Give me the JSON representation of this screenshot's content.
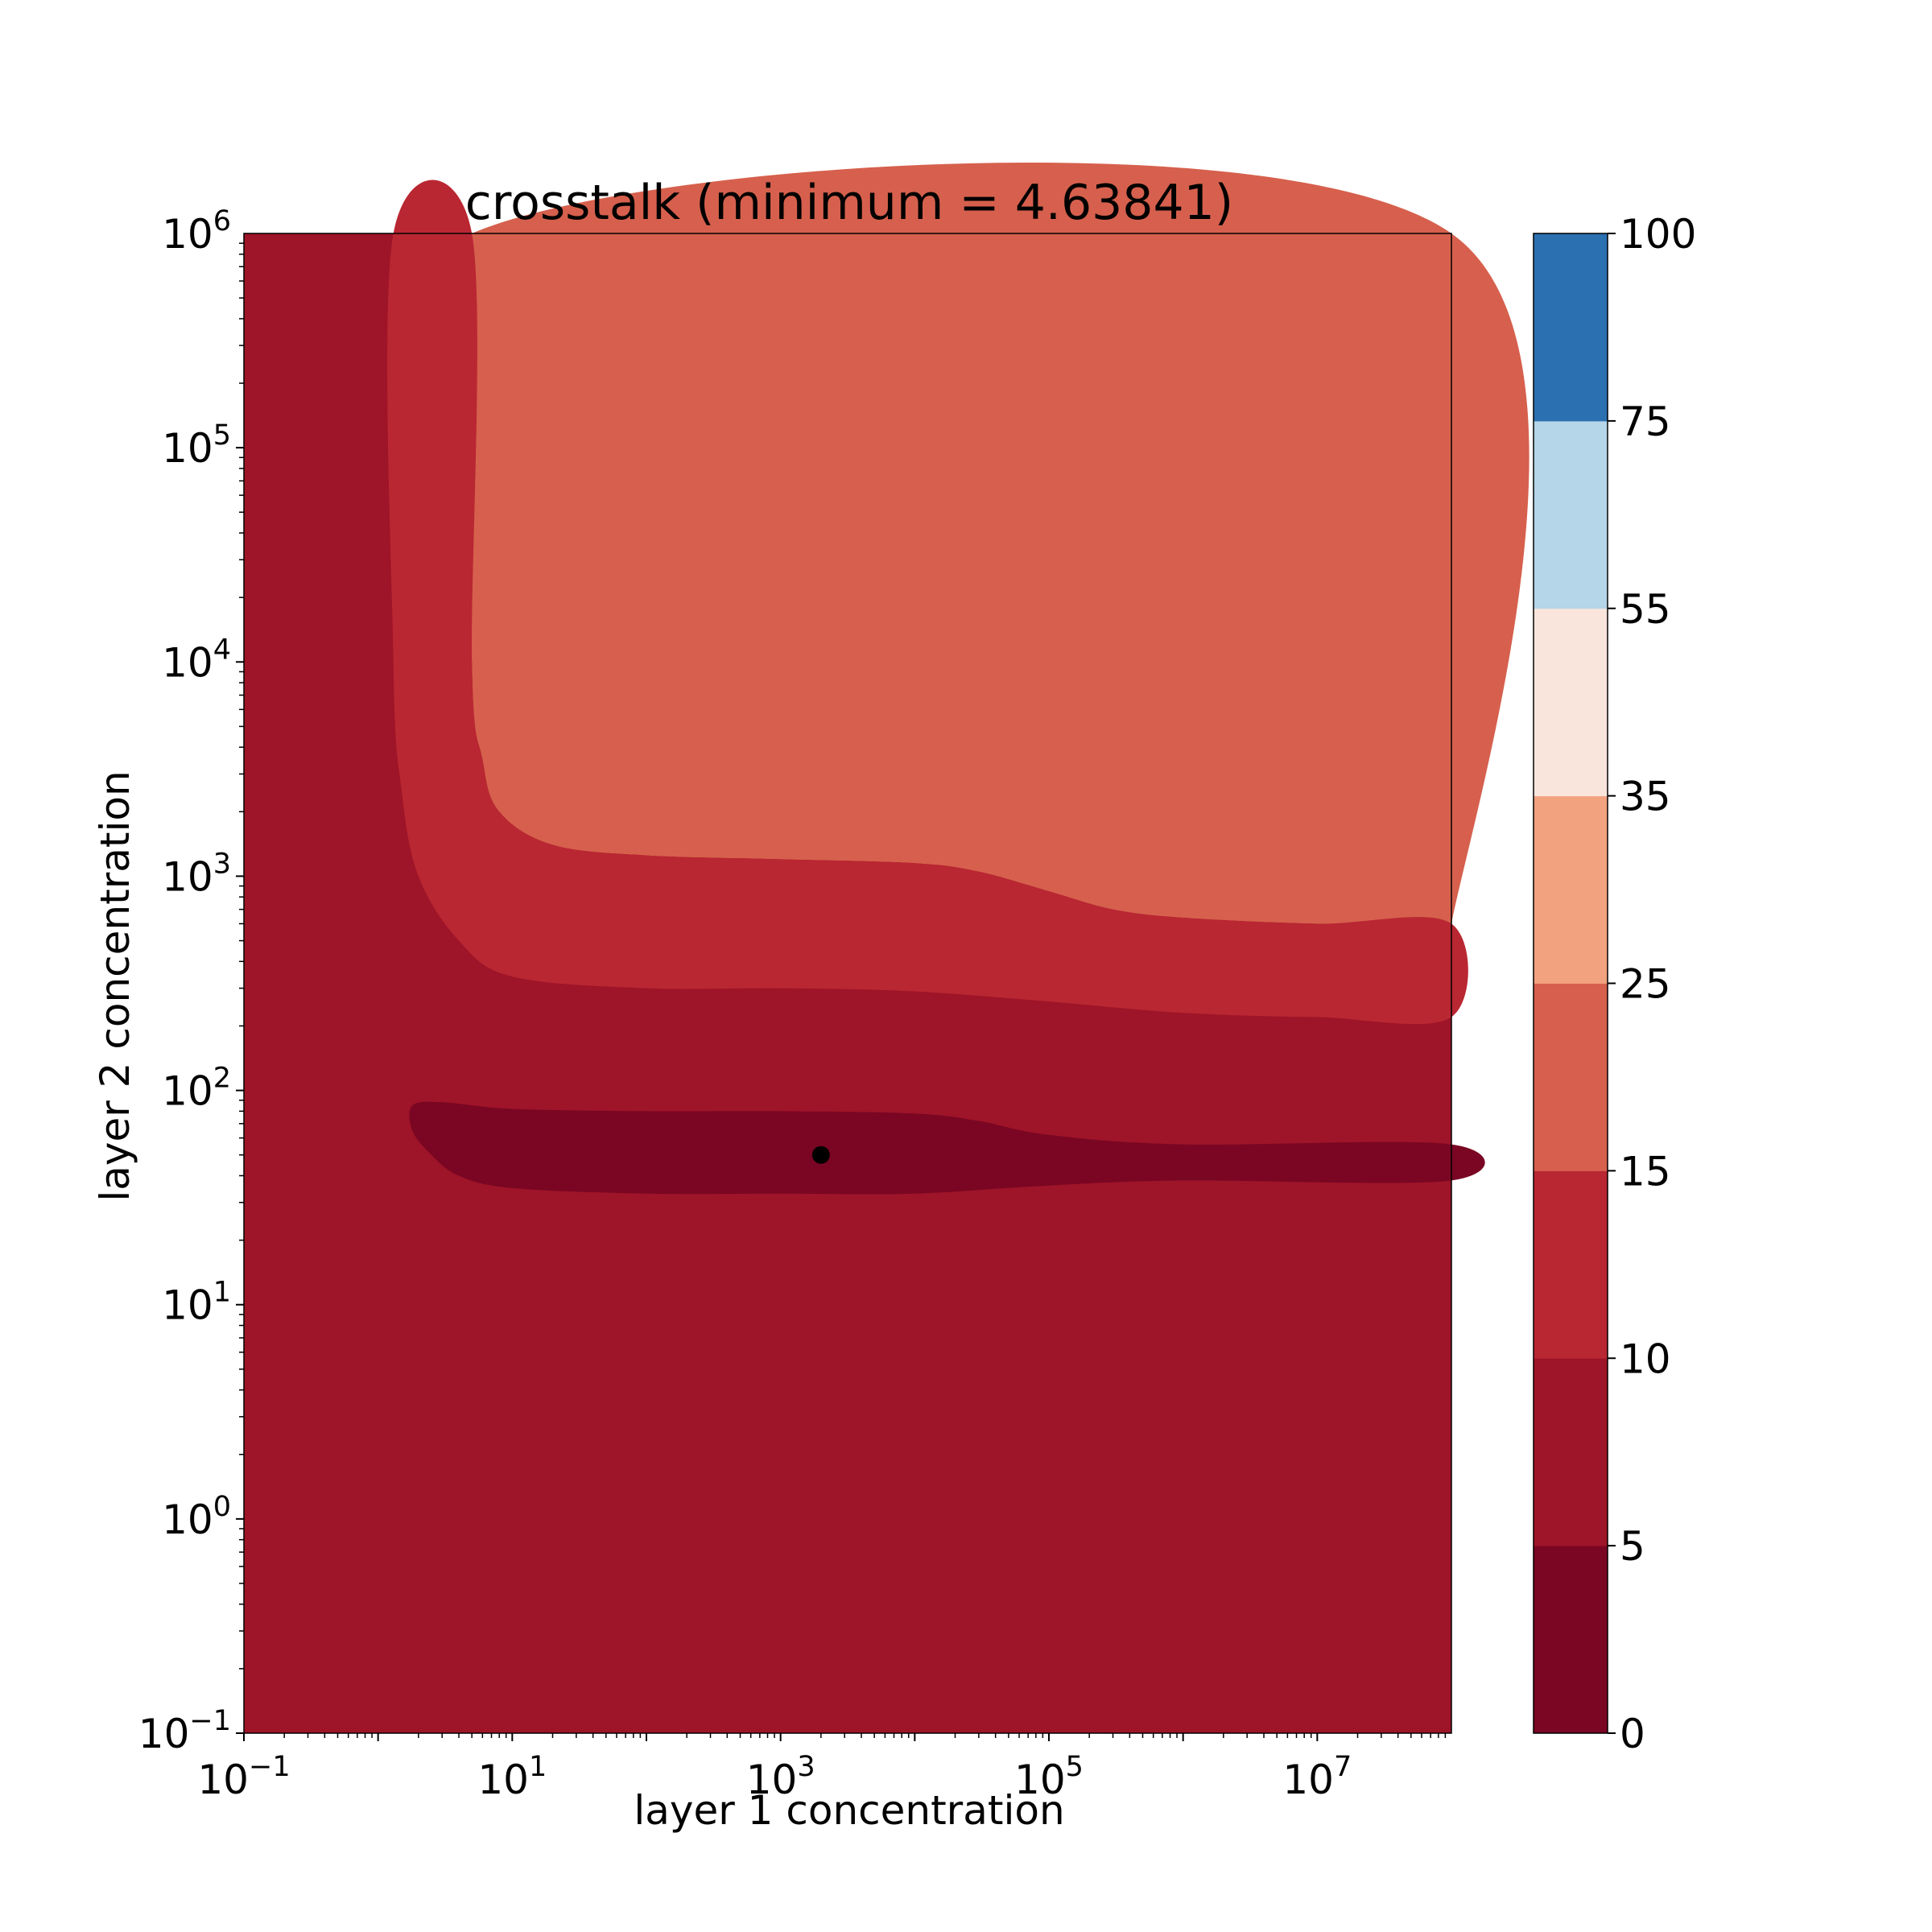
{
  "chart_data": {
    "type": "contour",
    "title": "crosstalk (minimum = 4.63841)",
    "xlabel": "layer 1 concentration",
    "ylabel": "layer 2 concentration",
    "x_scale": "log",
    "y_scale": "log",
    "xlim": [
      0.1,
      100000000
    ],
    "ylim": [
      0.1,
      1000000
    ],
    "x_ticks": [
      {
        "value": 0.1,
        "base": "10",
        "exp": "−1"
      },
      {
        "value": 10,
        "base": "10",
        "exp": "1"
      },
      {
        "value": 1000,
        "base": "10",
        "exp": "3"
      },
      {
        "value": 100000,
        "base": "10",
        "exp": "5"
      },
      {
        "value": 10000000,
        "base": "10",
        "exp": "7"
      }
    ],
    "y_ticks": [
      {
        "value": 0.1,
        "base": "10",
        "exp": "−1"
      },
      {
        "value": 1,
        "base": "10",
        "exp": "0"
      },
      {
        "value": 10,
        "base": "10",
        "exp": "1"
      },
      {
        "value": 100,
        "base": "10",
        "exp": "2"
      },
      {
        "value": 1000,
        "base": "10",
        "exp": "3"
      },
      {
        "value": 10000,
        "base": "10",
        "exp": "4"
      },
      {
        "value": 100000,
        "base": "10",
        "exp": "5"
      },
      {
        "value": 1000000,
        "base": "10",
        "exp": "6"
      }
    ],
    "levels": [
      0,
      5,
      10,
      15,
      25,
      35,
      55,
      75,
      100
    ],
    "level_colors": [
      "#7a0623",
      "#9e1428",
      "#b92732",
      "#d6604d",
      "#f2a27f",
      "#f9e5dc",
      "#b5d5e8",
      "#2b70b1"
    ],
    "regions": [
      {
        "range": [
          15,
          25
        ],
        "boundary": [
          [
            5,
            1000000
          ],
          [
            5,
            10000
          ],
          [
            6,
            3500
          ],
          [
            8,
            2000
          ],
          [
            20,
            1400
          ],
          [
            100,
            1250
          ],
          [
            1000,
            1200
          ],
          [
            10000,
            1150
          ],
          [
            30000,
            1050
          ],
          [
            100000,
            850
          ],
          [
            300000,
            700
          ],
          [
            1000000,
            640
          ],
          [
            10000000,
            600
          ],
          [
            100000000,
            600
          ],
          [
            100000000,
            1000000
          ]
        ]
      },
      {
        "range": [
          10,
          15
        ],
        "boundary": [
          [
            1.3,
            1000000
          ],
          [
            1.3,
            10000
          ],
          [
            1.5,
            2500
          ],
          [
            2,
            1000
          ],
          [
            4,
            500
          ],
          [
            10,
            340
          ],
          [
            100,
            300
          ],
          [
            1000,
            300
          ],
          [
            10000,
            290
          ],
          [
            100000,
            260
          ],
          [
            1000000,
            230
          ],
          [
            10000000,
            220
          ],
          [
            100000000,
            220
          ],
          [
            100000000,
            600
          ],
          [
            10000000,
            600
          ],
          [
            1000000,
            640
          ],
          [
            300000,
            700
          ],
          [
            100000,
            850
          ],
          [
            30000,
            1050
          ],
          [
            10000,
            1150
          ],
          [
            1000,
            1200
          ],
          [
            100,
            1250
          ],
          [
            20,
            1400
          ],
          [
            8,
            2000
          ],
          [
            6,
            3500
          ],
          [
            5,
            10000
          ],
          [
            5,
            1000000
          ]
        ]
      },
      {
        "range": [
          0,
          5
        ],
        "boundary": [
          [
            1.8,
            85
          ],
          [
            3,
            88
          ],
          [
            10,
            82
          ],
          [
            100,
            80
          ],
          [
            1000,
            80
          ],
          [
            10000,
            78
          ],
          [
            30000,
            72
          ],
          [
            100000,
            62
          ],
          [
            1000000,
            56
          ],
          [
            100000000,
            56
          ],
          [
            100000000,
            38
          ],
          [
            1000000,
            38
          ],
          [
            100000,
            36
          ],
          [
            10000,
            33
          ],
          [
            1000,
            33
          ],
          [
            100,
            33
          ],
          [
            10,
            35
          ],
          [
            4,
            40
          ],
          [
            2.5,
            50
          ],
          [
            1.8,
            65
          ]
        ]
      }
    ],
    "minimum_point": {
      "x": 2000,
      "y": 50,
      "value": 4.63841
    },
    "colorbar": {
      "ticks": [
        "0",
        "5",
        "10",
        "15",
        "25",
        "35",
        "55",
        "75",
        "100"
      ]
    }
  }
}
